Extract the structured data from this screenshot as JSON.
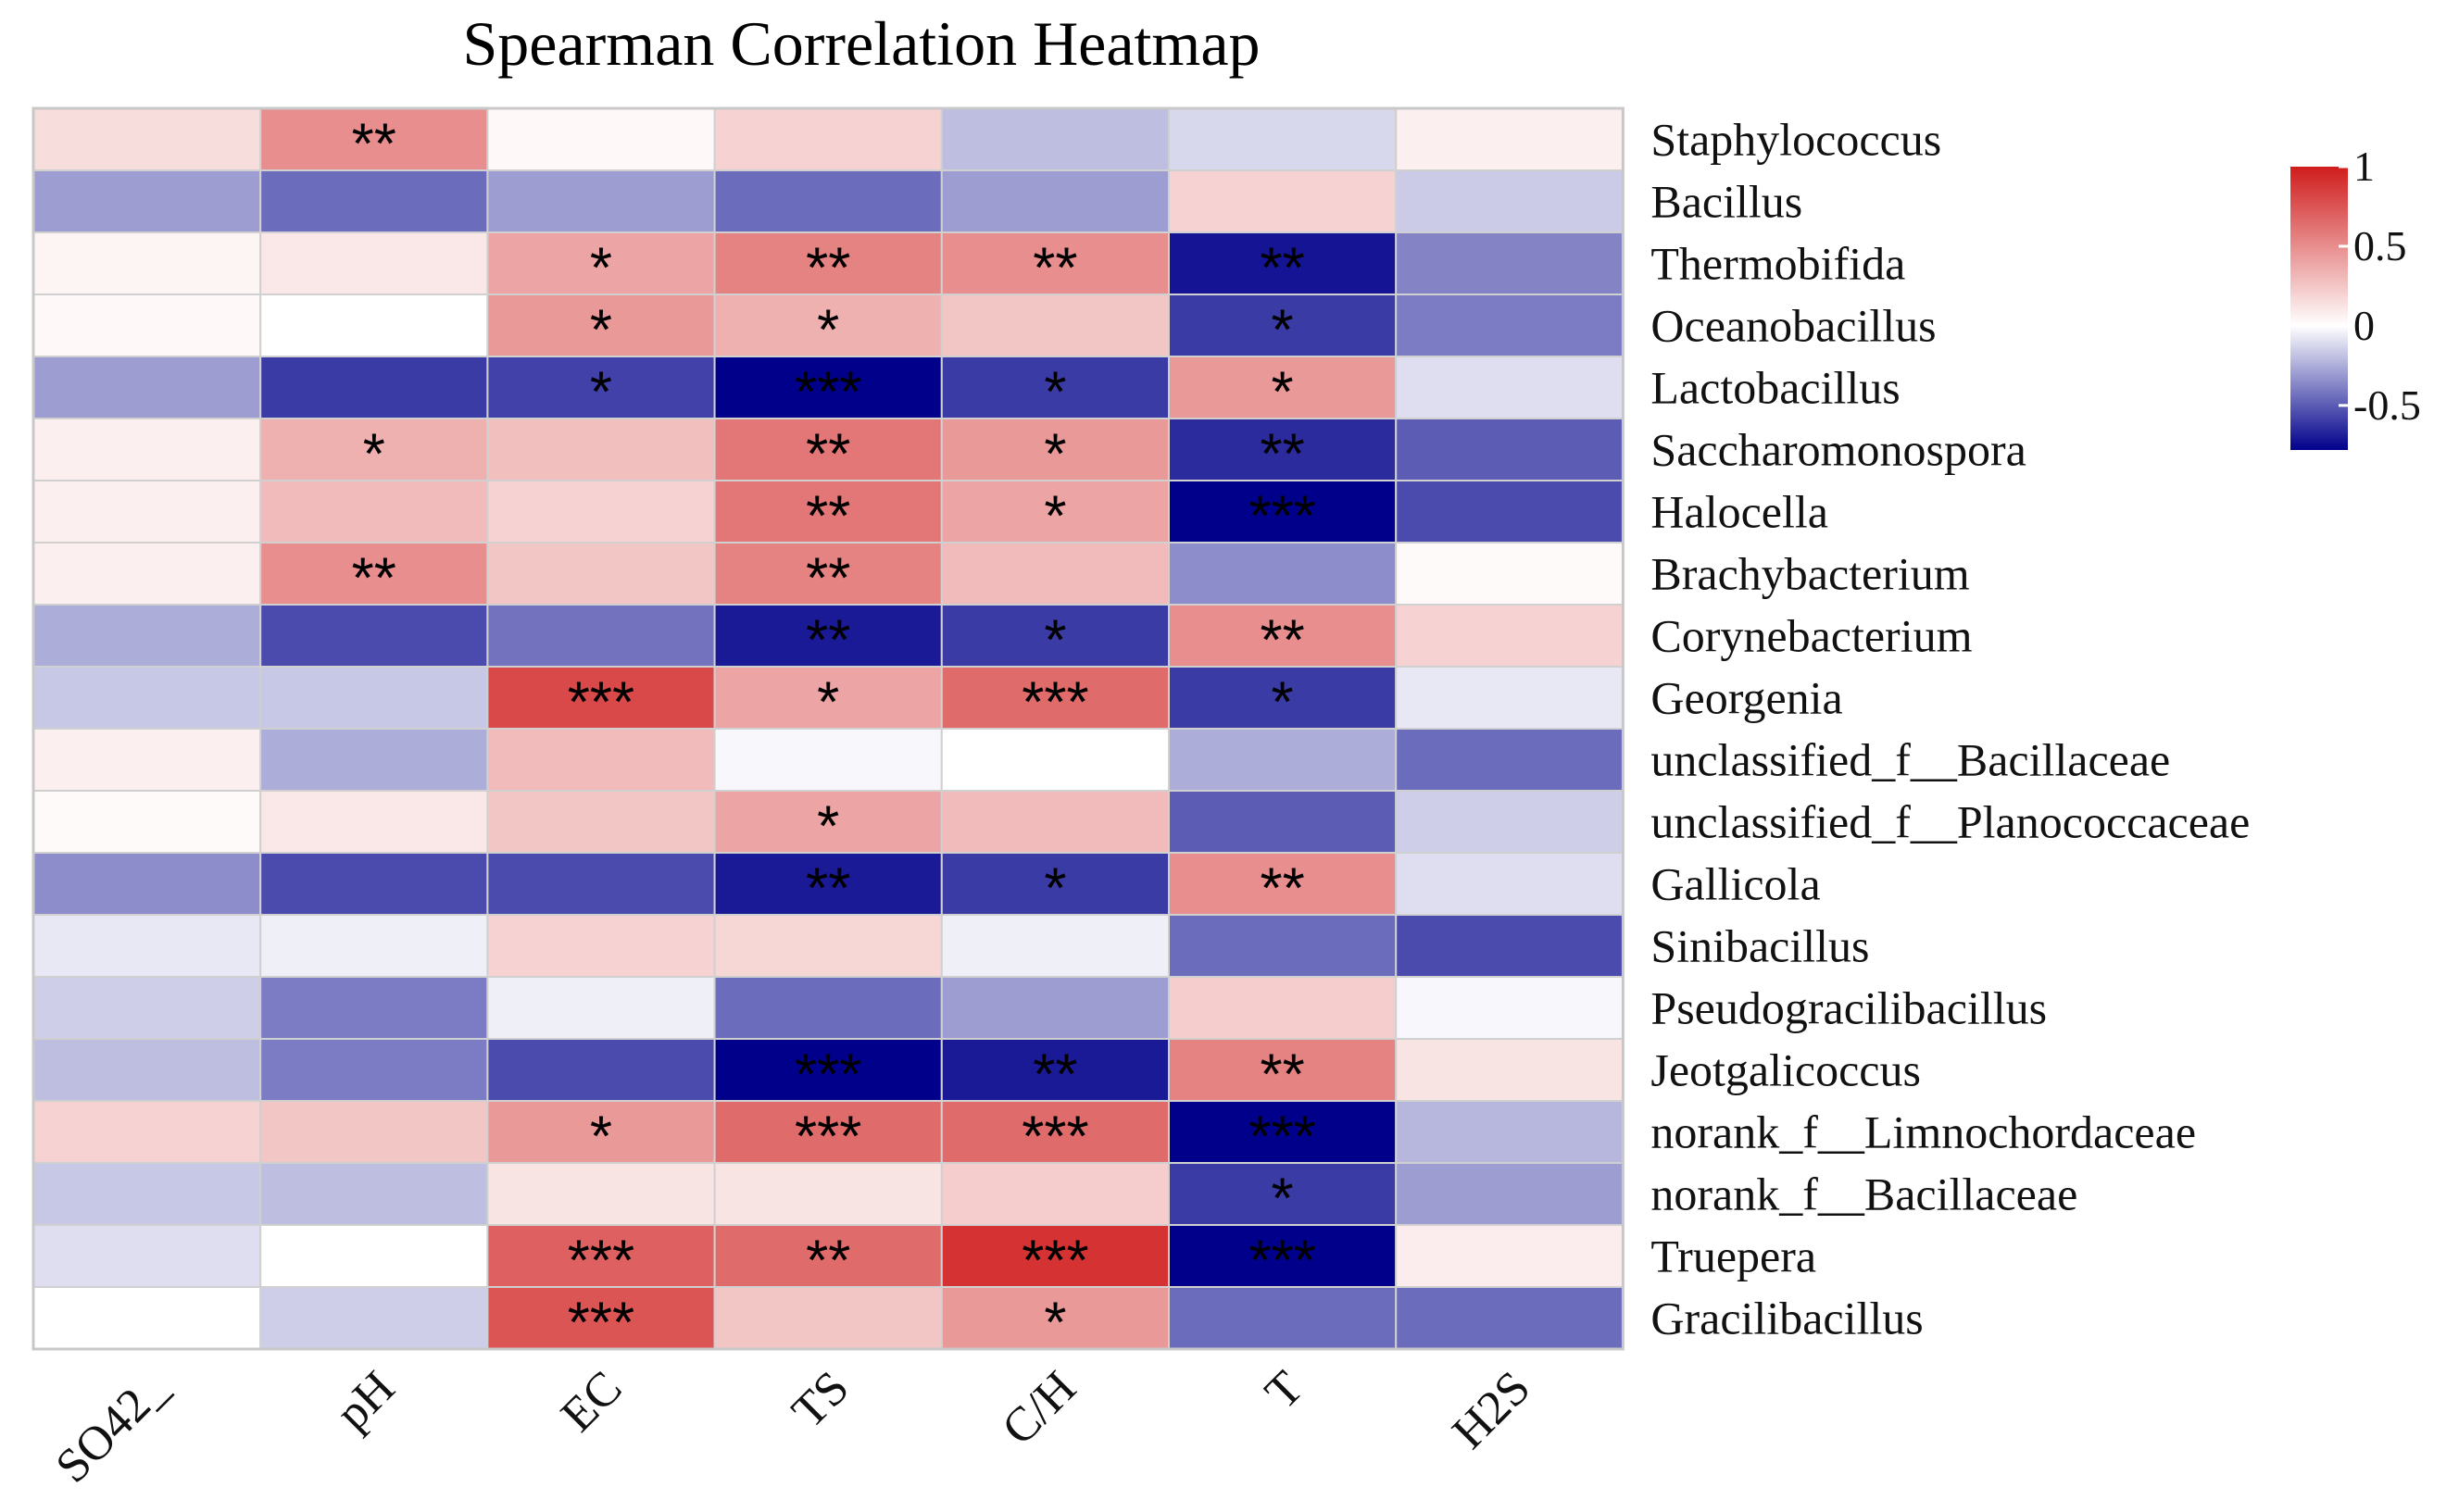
{
  "chart_data": {
    "type": "heatmap",
    "title": "Spearman Correlation Heatmap",
    "columns": [
      "SO42_",
      "pH",
      "EC",
      "TS",
      "C/H",
      "T",
      "H2S"
    ],
    "rows": [
      "Staphylococcus",
      "Bacillus",
      "Thermobifida",
      "Oceanobacillus",
      "Lactobacillus",
      "Saccharomonospora",
      "Halocella",
      "Brachybacterium",
      "Corynebacterium",
      "Georgenia",
      "unclassified_f__Bacillaceae",
      "unclassified_f__Planococcaceae",
      "Gallicola",
      "Sinibacillus",
      "Pseudogracilibacillus",
      "Jeotgalicoccus",
      "norank_f__Limnochordaceae",
      "norank_f__Bacillaceae",
      "Truepera",
      "Gracilibacillus"
    ],
    "values": [
      [
        0.15,
        0.5,
        0.03,
        0.2,
        -0.2,
        -0.12,
        0.07
      ],
      [
        -0.3,
        -0.45,
        -0.3,
        -0.45,
        -0.3,
        0.2,
        -0.16
      ],
      [
        0.05,
        0.1,
        0.4,
        0.55,
        0.5,
        -0.72,
        -0.38
      ],
      [
        0.03,
        0.0,
        0.45,
        0.35,
        0.25,
        -0.6,
        -0.4
      ],
      [
        -0.3,
        -0.6,
        -0.58,
        -0.78,
        -0.6,
        0.45,
        -0.1
      ],
      [
        0.07,
        0.35,
        0.28,
        0.6,
        0.45,
        -0.65,
        -0.5
      ],
      [
        0.07,
        0.3,
        0.2,
        0.6,
        0.4,
        -0.78,
        -0.55
      ],
      [
        0.07,
        0.5,
        0.25,
        0.55,
        0.3,
        -0.35,
        0.02
      ],
      [
        -0.25,
        -0.55,
        -0.43,
        -0.7,
        -0.6,
        0.5,
        0.2
      ],
      [
        -0.17,
        -0.17,
        0.8,
        0.4,
        0.65,
        -0.6,
        -0.07
      ],
      [
        0.07,
        -0.25,
        0.3,
        -0.02,
        0.0,
        -0.25,
        -0.45
      ],
      [
        0.02,
        0.1,
        0.25,
        0.4,
        0.3,
        -0.5,
        -0.15
      ],
      [
        -0.35,
        -0.55,
        -0.55,
        -0.7,
        -0.6,
        0.5,
        -0.1
      ],
      [
        -0.07,
        -0.05,
        0.2,
        0.18,
        -0.05,
        -0.45,
        -0.55
      ],
      [
        -0.15,
        -0.4,
        -0.05,
        -0.45,
        -0.3,
        0.22,
        -0.02
      ],
      [
        -0.2,
        -0.4,
        -0.55,
        -0.78,
        -0.7,
        0.55,
        0.12
      ],
      [
        0.2,
        0.25,
        0.45,
        0.65,
        0.65,
        -0.78,
        -0.22
      ],
      [
        -0.17,
        -0.2,
        0.12,
        0.12,
        0.22,
        -0.6,
        -0.3
      ],
      [
        -0.1,
        0.0,
        0.7,
        0.65,
        0.9,
        -0.78,
        0.08
      ],
      [
        0.0,
        -0.15,
        0.75,
        0.25,
        0.45,
        -0.45,
        -0.45
      ]
    ],
    "significance": [
      [
        "",
        "**",
        "",
        "",
        "",
        "",
        ""
      ],
      [
        "",
        "",
        "",
        "",
        "",
        "",
        ""
      ],
      [
        "",
        "",
        "*",
        "**",
        "**",
        "**",
        ""
      ],
      [
        "",
        "",
        "*",
        "*",
        "",
        "*",
        ""
      ],
      [
        "",
        "",
        "*",
        "***",
        "*",
        "*",
        ""
      ],
      [
        "",
        "*",
        "",
        "**",
        "*",
        "**",
        ""
      ],
      [
        "",
        "",
        "",
        "**",
        "*",
        "***",
        ""
      ],
      [
        "",
        "**",
        "",
        "**",
        "",
        "",
        ""
      ],
      [
        "",
        "",
        "",
        "**",
        "*",
        "**",
        ""
      ],
      [
        "",
        "",
        "***",
        "*",
        "***",
        "*",
        ""
      ],
      [
        "",
        "",
        "",
        "",
        "",
        "",
        ""
      ],
      [
        "",
        "",
        "",
        "*",
        "",
        "",
        ""
      ],
      [
        "",
        "",
        "",
        "**",
        "*",
        "**",
        ""
      ],
      [
        "",
        "",
        "",
        "",
        "",
        "",
        ""
      ],
      [
        "",
        "",
        "",
        "",
        "",
        "",
        ""
      ],
      [
        "",
        "",
        "",
        "***",
        "**",
        "**",
        ""
      ],
      [
        "",
        "",
        "*",
        "***",
        "***",
        "***",
        ""
      ],
      [
        "",
        "",
        "",
        "",
        "",
        "*",
        ""
      ],
      [
        "",
        "",
        "***",
        "**",
        "***",
        "***",
        ""
      ],
      [
        "",
        "",
        "***",
        "",
        "*",
        "",
        ""
      ]
    ],
    "color_scale": {
      "min": -0.78,
      "max": 1,
      "low": "#00008b",
      "mid": "#ffffff",
      "high": "#d01c1c",
      "ticks": [
        1,
        0.5,
        0,
        -0.5
      ],
      "tick_labels": [
        "1",
        "0.5",
        "0",
        "-0.5"
      ]
    },
    "legend_position": "top-right"
  }
}
